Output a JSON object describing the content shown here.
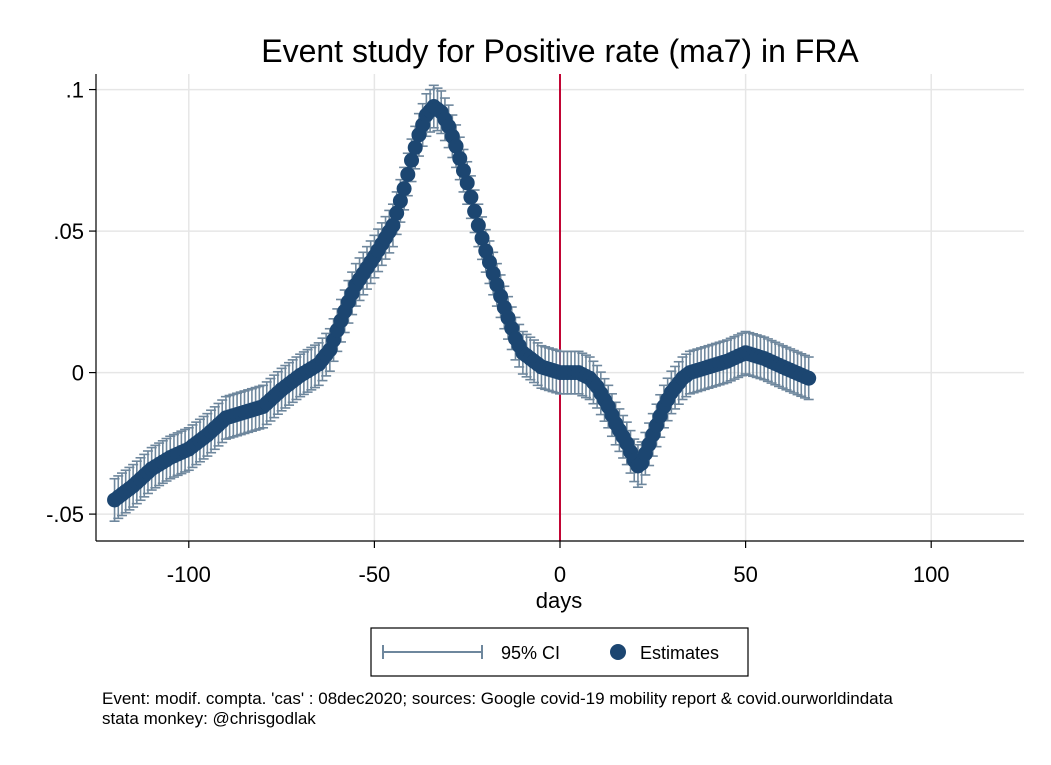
{
  "chart_data": {
    "type": "scatter",
    "title": "Event study for Positive rate (ma7) in FRA",
    "xlabel": "days",
    "ylabel": "",
    "xlim": [
      -125,
      125
    ],
    "ylim": [
      -0.0595,
      0.1055
    ],
    "x_ticks": [
      -100,
      -50,
      0,
      50,
      100
    ],
    "x_tick_labels": [
      "-100",
      "-50",
      "0",
      "50",
      "100"
    ],
    "y_ticks": [
      -0.05,
      0,
      0.05,
      0.1
    ],
    "y_tick_labels": [
      "-.05",
      "0",
      ".05",
      ".1"
    ],
    "grid": true,
    "event_line_x": 0,
    "x_range": [
      -120,
      67
    ],
    "anchor_points": {
      "x": [
        -120,
        -115,
        -110,
        -105,
        -100,
        -95,
        -90,
        -85,
        -80,
        -75,
        -70,
        -65,
        -62,
        -60,
        -57,
        -55,
        -50,
        -45,
        -42,
        -40,
        -38,
        -36,
        -34,
        -32,
        -30,
        -28,
        -25,
        -22,
        -20,
        -18,
        -15,
        -12,
        -10,
        -5,
        0,
        5,
        8,
        10,
        13,
        15,
        18,
        20,
        21,
        22,
        25,
        28,
        30,
        33,
        35,
        40,
        45,
        50,
        55,
        60,
        67
      ],
      "y": [
        -0.045,
        -0.04,
        -0.034,
        -0.03,
        -0.027,
        -0.022,
        -0.016,
        -0.014,
        -0.012,
        -0.006,
        -0.001,
        0.003,
        0.008,
        0.015,
        0.025,
        0.031,
        0.041,
        0.052,
        0.065,
        0.075,
        0.084,
        0.091,
        0.094,
        0.092,
        0.087,
        0.08,
        0.067,
        0.052,
        0.043,
        0.035,
        0.023,
        0.012,
        0.007,
        0.002,
        0.0,
        0.0,
        -0.002,
        -0.005,
        -0.012,
        -0.018,
        -0.025,
        -0.031,
        -0.033,
        -0.032,
        -0.022,
        -0.012,
        -0.007,
        -0.002,
        0.0,
        0.002,
        0.004,
        0.007,
        0.005,
        0.002,
        -0.002
      ]
    },
    "ci_half_width": 0.0075,
    "series": [
      {
        "name": "95% CI",
        "type": "errorbar",
        "color": "#6e879d"
      },
      {
        "name": "Estimates",
        "type": "scatter",
        "color": "#1c4671"
      }
    ],
    "event_line_color": "#c10534",
    "legend_position": "bottom",
    "notes": [
      "Event: modif. compta. 'cas' : 08dec2020; sources: Google covid-19 mobility report & covid.ourworldindata",
      "stata monkey: @chrisgodlak"
    ]
  }
}
